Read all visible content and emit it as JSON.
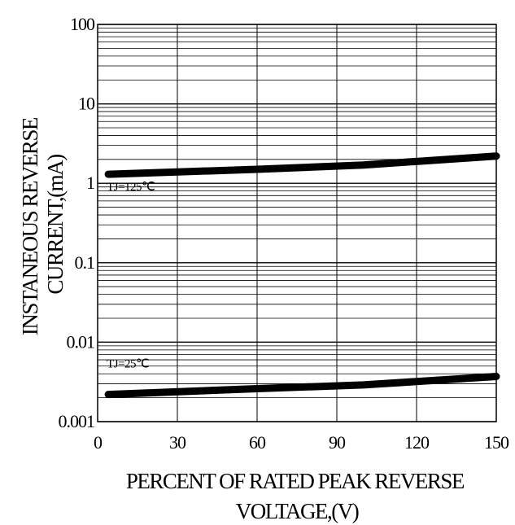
{
  "chart_data": {
    "type": "line",
    "xlabel_lines": [
      "PERCENT OF RATED PEAK REVERSE",
      "VOLTAGE,(V)"
    ],
    "ylabel_lines": [
      "INSTANEOUS REVERSE",
      "CURRENT,(mA)"
    ],
    "xlim": [
      0,
      150
    ],
    "ylim": [
      0.001,
      100
    ],
    "yscale": "log",
    "grid": true,
    "x_ticks": [
      {
        "value": 0,
        "label": "0"
      },
      {
        "value": 30,
        "label": "30"
      },
      {
        "value": 60,
        "label": "60"
      },
      {
        "value": 90,
        "label": "90"
      },
      {
        "value": 120,
        "label": "120"
      },
      {
        "value": 150,
        "label": "150"
      }
    ],
    "y_ticks": [
      {
        "value": 100,
        "label": "100"
      },
      {
        "value": 10,
        "label": "10"
      },
      {
        "value": 1,
        "label": "1"
      },
      {
        "value": 0.1,
        "label": "0.1"
      },
      {
        "value": 0.01,
        "label": "0.01"
      },
      {
        "value": 0.001,
        "label": "0.001"
      }
    ],
    "series": [
      {
        "name": "TJ=125℃",
        "label": "TJ=125℃",
        "x": [
          4,
          60,
          100,
          150
        ],
        "y": [
          1.3,
          1.5,
          1.7,
          2.2
        ]
      },
      {
        "name": "TJ=25℃",
        "label": "TJ=25℃",
        "x": [
          4,
          60,
          100,
          150
        ],
        "y": [
          0.0022,
          0.0026,
          0.0029,
          0.0037
        ]
      }
    ],
    "colors": {
      "line": "#000000",
      "grid": "#000000",
      "background": "#ffffff"
    }
  }
}
